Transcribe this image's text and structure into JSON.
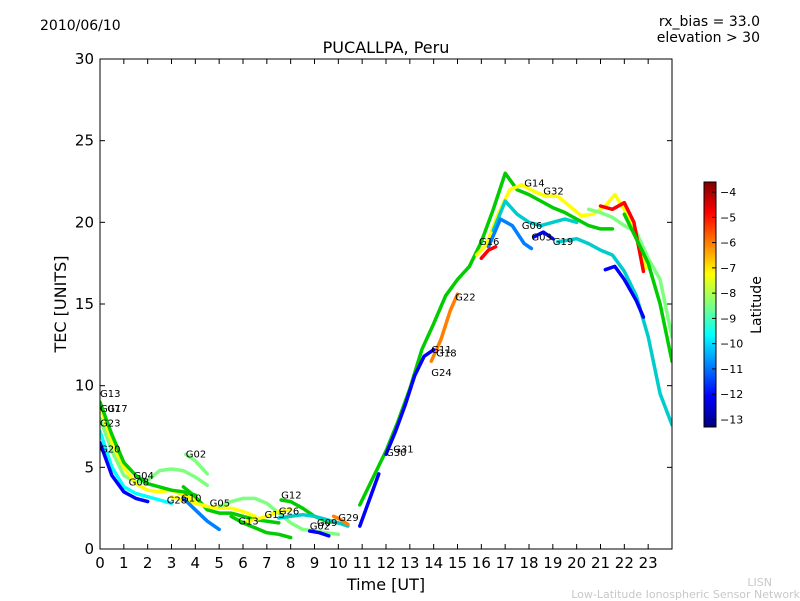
{
  "header": {
    "date": "2010/06/10",
    "rx_bias": "rx_bias = 33.0",
    "elevation": "elevation > 30"
  },
  "footer": {
    "network_short": "LISN",
    "network_full": "Low-Latitude Ionospheric Sensor Network"
  },
  "chart_data": {
    "type": "scatter",
    "title": "PUCALLPA, Peru",
    "xlabel": "Time [UT]",
    "ylabel": "TEC [UNITS]",
    "xlim": [
      0,
      24
    ],
    "ylim": [
      0,
      30
    ],
    "x_ticks": [
      0,
      1,
      2,
      3,
      4,
      5,
      6,
      7,
      8,
      9,
      10,
      11,
      12,
      13,
      14,
      15,
      16,
      17,
      18,
      19,
      20,
      21,
      22,
      23
    ],
    "y_ticks": [
      0,
      5,
      10,
      15,
      20,
      25,
      30
    ],
    "grid": false,
    "colorbar": {
      "label": "Latitude",
      "range": [
        -13.3,
        -3.6
      ],
      "ticks": [
        -4,
        -5,
        -6,
        -7,
        -8,
        -9,
        -10,
        -11,
        -12,
        -13
      ],
      "colormap": [
        "#00007f",
        "#0000ff",
        "#007fff",
        "#00ffff",
        "#7fff7f",
        "#ffff00",
        "#ff7f00",
        "#ff0000",
        "#7f0000"
      ]
    },
    "satellite_labels": [
      {
        "name": "G13",
        "x": 0.0,
        "y": 9.3
      },
      {
        "name": "G07",
        "x": 0.0,
        "y": 8.4
      },
      {
        "name": "G17",
        "x": 0.3,
        "y": 8.4
      },
      {
        "name": "G23",
        "x": 0.0,
        "y": 7.5
      },
      {
        "name": "G20",
        "x": 0.0,
        "y": 5.9
      },
      {
        "name": "G04",
        "x": 1.4,
        "y": 4.3
      },
      {
        "name": "G08",
        "x": 1.2,
        "y": 3.9
      },
      {
        "name": "G02",
        "x": 3.6,
        "y": 5.6
      },
      {
        "name": "G28",
        "x": 2.8,
        "y": 2.8
      },
      {
        "name": "G10",
        "x": 3.4,
        "y": 2.9
      },
      {
        "name": "G05",
        "x": 4.6,
        "y": 2.6
      },
      {
        "name": "G13",
        "x": 5.8,
        "y": 1.5
      },
      {
        "name": "G15",
        "x": 6.9,
        "y": 1.9
      },
      {
        "name": "G26",
        "x": 7.5,
        "y": 2.1
      },
      {
        "name": "G12",
        "x": 7.6,
        "y": 3.1
      },
      {
        "name": "G02",
        "x": 8.8,
        "y": 1.2
      },
      {
        "name": "G09",
        "x": 9.1,
        "y": 1.4
      },
      {
        "name": "G29",
        "x": 10.0,
        "y": 1.7
      },
      {
        "name": "G31",
        "x": 12.3,
        "y": 5.9
      },
      {
        "name": "G30",
        "x": 12.0,
        "y": 5.7
      },
      {
        "name": "G11",
        "x": 13.9,
        "y": 12.0
      },
      {
        "name": "G18",
        "x": 14.1,
        "y": 11.8
      },
      {
        "name": "G24",
        "x": 13.9,
        "y": 10.6
      },
      {
        "name": "G22",
        "x": 14.9,
        "y": 15.2
      },
      {
        "name": "G16",
        "x": 15.9,
        "y": 18.6
      },
      {
        "name": "G14",
        "x": 17.8,
        "y": 22.2
      },
      {
        "name": "G32",
        "x": 18.6,
        "y": 21.7
      },
      {
        "name": "G06",
        "x": 17.7,
        "y": 19.6
      },
      {
        "name": "G03",
        "x": 18.1,
        "y": 18.9
      },
      {
        "name": "G19",
        "x": 19.0,
        "y": 18.6
      }
    ],
    "series": [
      {
        "color": "#7fff7f",
        "points": [
          [
            0,
            8.0
          ],
          [
            0.5,
            6.0
          ],
          [
            1.0,
            4.5
          ],
          [
            1.5,
            4.1
          ],
          [
            2.0,
            4.2
          ],
          [
            2.5,
            4.8
          ],
          [
            3.0,
            4.9
          ],
          [
            3.5,
            4.8
          ],
          [
            4.0,
            4.4
          ],
          [
            4.5,
            3.9
          ]
        ]
      },
      {
        "color": "#ffff00",
        "points": [
          [
            0,
            8.8
          ],
          [
            0.5,
            6.5
          ],
          [
            1.0,
            5.0
          ],
          [
            1.5,
            4.0
          ],
          [
            2.0,
            3.6
          ],
          [
            2.5,
            3.5
          ],
          [
            3.0,
            3.6
          ],
          [
            3.5,
            3.3
          ],
          [
            4.0,
            3.0
          ]
        ]
      },
      {
        "color": "#00ffff",
        "points": [
          [
            0,
            7.2
          ],
          [
            0.5,
            5.0
          ],
          [
            1.0,
            3.8
          ],
          [
            1.5,
            3.4
          ],
          [
            2.0,
            3.2
          ],
          [
            2.5,
            3.0
          ],
          [
            3.0,
            2.8
          ]
        ]
      },
      {
        "color": "#0000ff",
        "points": [
          [
            0,
            6.5
          ],
          [
            0.5,
            4.5
          ],
          [
            1.0,
            3.5
          ],
          [
            1.5,
            3.1
          ],
          [
            2.0,
            2.9
          ]
        ]
      },
      {
        "color": "#00cc00",
        "points": [
          [
            0,
            9.0
          ],
          [
            0.5,
            7.0
          ],
          [
            1.0,
            5.3
          ],
          [
            1.5,
            4.5
          ],
          [
            2.0,
            4.0
          ],
          [
            2.5,
            3.8
          ],
          [
            3.0,
            3.6
          ],
          [
            3.5,
            3.5
          ],
          [
            4.0,
            3.3
          ]
        ]
      },
      {
        "color": "#7fff7f",
        "points": [
          [
            3.6,
            5.8
          ],
          [
            4.0,
            5.4
          ],
          [
            4.5,
            4.6
          ]
        ]
      },
      {
        "color": "#00cc00",
        "points": [
          [
            3.5,
            3.8
          ],
          [
            4.0,
            3.2
          ],
          [
            4.5,
            2.4
          ],
          [
            5.0,
            2.2
          ],
          [
            5.5,
            2.2
          ],
          [
            6.0,
            2.0
          ],
          [
            6.5,
            1.8
          ],
          [
            7.0,
            1.7
          ],
          [
            7.5,
            1.6
          ]
        ]
      },
      {
        "color": "#ffff00",
        "points": [
          [
            3.0,
            3.2
          ],
          [
            3.5,
            3.0
          ],
          [
            4.0,
            2.8
          ],
          [
            4.5,
            2.6
          ],
          [
            5.0,
            2.5
          ],
          [
            5.5,
            2.5
          ],
          [
            6.0,
            2.3
          ],
          [
            6.5,
            2.0
          ]
        ]
      },
      {
        "color": "#007fff",
        "points": [
          [
            3.5,
            3.1
          ],
          [
            4.0,
            2.4
          ],
          [
            4.5,
            1.7
          ],
          [
            5.0,
            1.2
          ]
        ]
      },
      {
        "color": "#7fff7f",
        "points": [
          [
            5.0,
            2.6
          ],
          [
            5.5,
            2.9
          ],
          [
            6.0,
            3.1
          ],
          [
            6.5,
            3.1
          ],
          [
            7.0,
            2.8
          ],
          [
            7.5,
            2.2
          ],
          [
            8.0,
            1.6
          ],
          [
            8.5,
            1.2
          ],
          [
            9.0,
            1.1
          ],
          [
            9.5,
            1.0
          ],
          [
            10.0,
            0.9
          ]
        ]
      },
      {
        "color": "#00cc00",
        "points": [
          [
            7.6,
            3.0
          ],
          [
            8.0,
            2.9
          ],
          [
            8.5,
            2.5
          ],
          [
            9.0,
            2.0
          ],
          [
            9.5,
            1.7
          ],
          [
            10.0,
            1.6
          ]
        ]
      },
      {
        "color": "#00cccc",
        "points": [
          [
            7.5,
            1.9
          ],
          [
            8.0,
            2.0
          ],
          [
            8.5,
            2.1
          ],
          [
            9.0,
            2.0
          ],
          [
            9.5,
            1.8
          ],
          [
            10.0,
            1.6
          ],
          [
            10.4,
            1.4
          ]
        ]
      },
      {
        "color": "#ffff00",
        "points": [
          [
            6.0,
            1.6
          ],
          [
            6.5,
            1.8
          ],
          [
            7.0,
            2.0
          ],
          [
            7.5,
            2.3
          ],
          [
            8.0,
            2.4
          ]
        ]
      },
      {
        "color": "#00cc00",
        "points": [
          [
            5.5,
            2.0
          ],
          [
            6.0,
            1.6
          ],
          [
            6.5,
            1.3
          ],
          [
            7.0,
            1.0
          ],
          [
            7.5,
            0.9
          ],
          [
            8.0,
            0.7
          ]
        ]
      },
      {
        "color": "#0000ff",
        "points": [
          [
            8.8,
            1.1
          ],
          [
            9.2,
            1.0
          ],
          [
            9.6,
            0.8
          ]
        ]
      },
      {
        "color": "#ff7f00",
        "points": [
          [
            9.8,
            2.0
          ],
          [
            10.1,
            1.8
          ],
          [
            10.4,
            1.5
          ]
        ]
      },
      {
        "color": "#00cc00",
        "points": [
          [
            10.9,
            2.7
          ],
          [
            11.5,
            4.5
          ],
          [
            12.0,
            6.0
          ],
          [
            12.5,
            7.8
          ],
          [
            13.0,
            9.8
          ],
          [
            13.5,
            12.2
          ],
          [
            14.0,
            13.8
          ],
          [
            14.5,
            15.5
          ],
          [
            15.0,
            16.5
          ],
          [
            15.5,
            17.3
          ],
          [
            16.0,
            18.8
          ],
          [
            16.5,
            20.8
          ],
          [
            17.0,
            23.0
          ],
          [
            17.5,
            22.0
          ],
          [
            18.0,
            21.7
          ],
          [
            18.5,
            21.3
          ],
          [
            19.0,
            20.9
          ],
          [
            19.5,
            20.6
          ],
          [
            20.0,
            20.2
          ],
          [
            20.5,
            19.8
          ],
          [
            21.0,
            19.6
          ],
          [
            21.5,
            19.6
          ]
        ]
      },
      {
        "color": "#ffff00",
        "points": [
          [
            15.8,
            18.0
          ],
          [
            16.2,
            18.6
          ],
          [
            16.7,
            20.5
          ],
          [
            17.2,
            22.0
          ],
          [
            17.7,
            22.3
          ],
          [
            18.2,
            21.9
          ],
          [
            18.7,
            21.6
          ],
          [
            19.2,
            21.6
          ],
          [
            19.7,
            21.0
          ],
          [
            20.2,
            20.4
          ],
          [
            20.7,
            20.5
          ],
          [
            21.2,
            21.0
          ],
          [
            21.6,
            21.7
          ],
          [
            22.0,
            20.8
          ],
          [
            22.5,
            19.0
          ],
          [
            22.9,
            17.2
          ]
        ]
      },
      {
        "color": "#00cccc",
        "points": [
          [
            16.5,
            19.5
          ],
          [
            17.0,
            21.3
          ],
          [
            17.5,
            20.5
          ],
          [
            18.0,
            20.0
          ],
          [
            18.5,
            19.8
          ],
          [
            19.0,
            20.0
          ],
          [
            19.5,
            20.2
          ],
          [
            20.0,
            20.0
          ]
        ]
      },
      {
        "color": "#007fff",
        "points": [
          [
            16.3,
            18.5
          ],
          [
            16.8,
            20.2
          ],
          [
            17.3,
            19.8
          ],
          [
            17.8,
            18.7
          ],
          [
            18.1,
            18.4
          ]
        ]
      },
      {
        "color": "#0000ff",
        "points": [
          [
            18.2,
            19.1
          ],
          [
            18.6,
            19.4
          ],
          [
            19.0,
            19.0
          ]
        ]
      },
      {
        "color": "#00cccc",
        "points": [
          [
            19.2,
            18.8
          ],
          [
            19.6,
            18.9
          ],
          [
            20.0,
            19.0
          ],
          [
            20.5,
            18.7
          ],
          [
            21.0,
            18.3
          ],
          [
            21.5,
            18.0
          ],
          [
            22.0,
            17.0
          ],
          [
            22.5,
            15.5
          ],
          [
            23.0,
            13.0
          ],
          [
            23.5,
            9.5
          ],
          [
            24.0,
            7.6
          ]
        ]
      },
      {
        "color": "#0000ff",
        "points": [
          [
            21.2,
            17.1
          ],
          [
            21.6,
            17.3
          ],
          [
            22.0,
            16.5
          ],
          [
            22.5,
            15.2
          ],
          [
            22.8,
            14.2
          ]
        ]
      },
      {
        "color": "#7fff7f",
        "points": [
          [
            20.5,
            20.8
          ],
          [
            21.0,
            20.6
          ],
          [
            21.5,
            20.3
          ],
          [
            22.0,
            19.8
          ],
          [
            22.5,
            19.4
          ],
          [
            23.0,
            17.8
          ],
          [
            23.5,
            16.5
          ],
          [
            24.0,
            13.0
          ]
        ]
      },
      {
        "color": "#ff0000",
        "points": [
          [
            21.0,
            21.0
          ],
          [
            21.5,
            20.8
          ],
          [
            22.0,
            21.2
          ],
          [
            22.4,
            20.0
          ],
          [
            22.8,
            17.0
          ]
        ]
      },
      {
        "color": "#00cc00",
        "points": [
          [
            22.0,
            20.5
          ],
          [
            22.5,
            19.0
          ],
          [
            23.0,
            17.5
          ],
          [
            23.5,
            15.0
          ],
          [
            24.0,
            11.5
          ]
        ]
      },
      {
        "color": "#ff7f00",
        "points": [
          [
            13.9,
            11.5
          ],
          [
            14.3,
            12.8
          ],
          [
            14.7,
            14.6
          ],
          [
            15.0,
            15.6
          ]
        ]
      },
      {
        "color": "#0000ff",
        "points": [
          [
            12.0,
            5.8
          ],
          [
            12.4,
            7.2
          ],
          [
            12.8,
            8.8
          ],
          [
            13.2,
            10.6
          ],
          [
            13.6,
            11.8
          ],
          [
            14.0,
            12.2
          ]
        ]
      },
      {
        "color": "#ff0000",
        "points": [
          [
            16.0,
            17.8
          ],
          [
            16.3,
            18.3
          ],
          [
            16.6,
            18.5
          ]
        ]
      },
      {
        "color": "#0000ff",
        "points": [
          [
            10.9,
            1.4
          ],
          [
            11.3,
            3.0
          ],
          [
            11.7,
            4.6
          ]
        ]
      }
    ]
  }
}
